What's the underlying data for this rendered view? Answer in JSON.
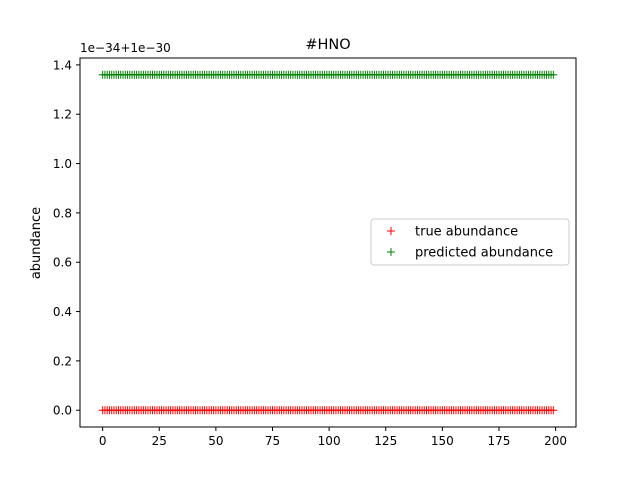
{
  "chart_data": {
    "type": "scatter",
    "title": "#HNO",
    "xlabel": "",
    "ylabel": "abundance",
    "offset_label": "1e−34+1e−30",
    "xlim": [
      -10,
      209
    ],
    "ylim": [
      -0.068,
      1.428
    ],
    "x_ticks": [
      0,
      25,
      50,
      75,
      100,
      125,
      150,
      175,
      200
    ],
    "y_ticks": [
      0.0,
      0.2,
      0.4,
      0.6,
      0.8,
      1.0,
      1.2,
      1.4
    ],
    "y_tick_labels": [
      "0.0",
      "0.2",
      "0.4",
      "0.6",
      "0.8",
      "1.0",
      "1.2",
      "1.4"
    ],
    "x_range": [
      0,
      199
    ],
    "grid": false,
    "legend_position": "center-right",
    "marker": "+",
    "series": [
      {
        "name": "true abundance",
        "color": "#ff0000",
        "constant_value": 0.0
      },
      {
        "name": "predicted abundance",
        "color": "#008000",
        "constant_value": 1.36
      }
    ]
  }
}
